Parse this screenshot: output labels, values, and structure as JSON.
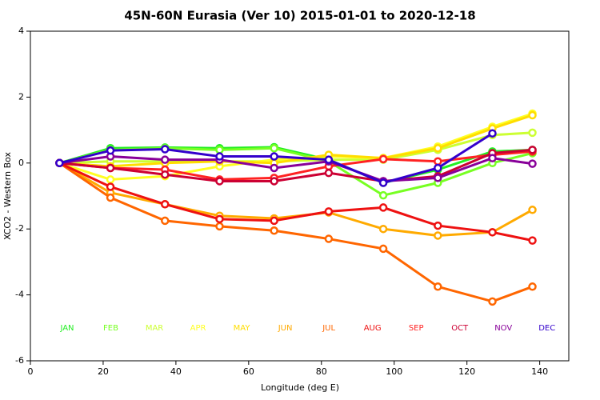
{
  "chart_data": {
    "type": "line",
    "title": "45N-60N Eurasia (Ver 10)   2015-01-01 to 2020-12-18",
    "x_label": "Longitude (deg E)",
    "y_label": "XCO2 - Western Box",
    "x": [
      8,
      22,
      37,
      52,
      67,
      82,
      97,
      112,
      127,
      138
    ],
    "xlim": [
      0,
      148
    ],
    "xticks": [
      0,
      20,
      40,
      60,
      80,
      100,
      120,
      140
    ],
    "ylim": [
      -6,
      4
    ],
    "yticks": [
      -6,
      -4,
      -2,
      0,
      2,
      4
    ],
    "series": [
      {
        "name": "JAN",
        "color": "#22ee22",
        "values": [
          0,
          0.45,
          0.47,
          0.45,
          0.48,
          0.1,
          -0.6,
          -0.2,
          0.35,
          0.4
        ]
      },
      {
        "name": "FEB",
        "color": "#77ff22",
        "values": [
          0,
          0.4,
          0.45,
          0.4,
          0.45,
          0.05,
          -0.98,
          -0.6,
          0.0,
          0.3
        ]
      },
      {
        "name": "MAR",
        "color": "#ccff33",
        "values": [
          0,
          0.05,
          0.05,
          0.05,
          0.05,
          0.1,
          0.1,
          0.4,
          0.85,
          0.92
        ]
      },
      {
        "name": "APR",
        "color": "#ffff22",
        "values": [
          0,
          -0.5,
          -0.4,
          -0.1,
          0.1,
          0.2,
          0.15,
          0.5,
          1.1,
          1.5
        ]
      },
      {
        "name": "MAY",
        "color": "#ffdd00",
        "values": [
          0,
          -0.1,
          0.0,
          0.05,
          0.0,
          0.25,
          0.15,
          0.45,
          1.05,
          1.45
        ]
      },
      {
        "name": "JUN",
        "color": "#ffaa00",
        "values": [
          0,
          -0.9,
          -1.25,
          -1.6,
          -1.68,
          -1.5,
          -2.0,
          -2.2,
          -2.1,
          -1.42
        ]
      },
      {
        "name": "JUL",
        "color": "#ff6600",
        "values": [
          0,
          -1.05,
          -1.75,
          -1.92,
          -2.05,
          -2.3,
          -2.6,
          -3.75,
          -4.2,
          -3.75
        ]
      },
      {
        "name": "AUG",
        "color": "#ee1111",
        "values": [
          0,
          -0.72,
          -1.25,
          -1.7,
          -1.75,
          -1.47,
          -1.35,
          -1.9,
          -2.1,
          -2.35
        ]
      },
      {
        "name": "SEP",
        "color": "#ff2222",
        "values": [
          0,
          -0.15,
          -0.2,
          -0.5,
          -0.45,
          -0.1,
          0.12,
          0.05,
          0.25,
          0.35
        ]
      },
      {
        "name": "OCT",
        "color": "#cc0033",
        "values": [
          0,
          -0.15,
          -0.35,
          -0.55,
          -0.55,
          -0.3,
          -0.55,
          -0.4,
          0.3,
          0.4
        ]
      },
      {
        "name": "NOV",
        "color": "#880099",
        "values": [
          0,
          0.2,
          0.1,
          0.1,
          -0.15,
          0.05,
          -0.55,
          -0.45,
          0.15,
          -0.02
        ]
      },
      {
        "name": "DEC",
        "color": "#3300cc",
        "values": [
          0,
          0.38,
          0.42,
          0.2,
          0.2,
          0.1,
          -0.6,
          -0.15,
          0.9,
          null
        ]
      }
    ]
  }
}
